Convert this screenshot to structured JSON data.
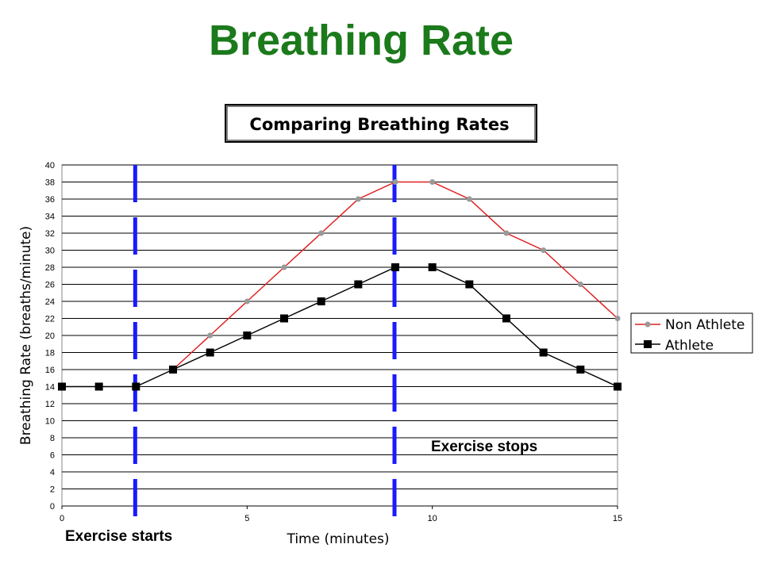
{
  "slide": {
    "title": "Breathing Rate"
  },
  "chart_data": {
    "type": "line",
    "title": "Comparing Breathing Rates",
    "xlabel": "Time (minutes)",
    "ylabel": "Breathing Rate (breaths/minute)",
    "xlim": [
      0,
      15
    ],
    "ylim": [
      0,
      40
    ],
    "xticks": [
      0,
      5,
      10,
      15
    ],
    "yticks": [
      0,
      2,
      4,
      6,
      8,
      10,
      12,
      14,
      16,
      18,
      20,
      22,
      24,
      26,
      28,
      30,
      32,
      34,
      36,
      38,
      40
    ],
    "grid": "horizontal",
    "legend_position": "right",
    "series": [
      {
        "name": "Non Athlete",
        "color": "#e02020",
        "marker_color": "#999999",
        "marker": "circle",
        "x": [
          3,
          4,
          5,
          6,
          7,
          8,
          9,
          10,
          11,
          12,
          13,
          14,
          15
        ],
        "y": [
          16,
          20,
          24,
          28,
          32,
          36,
          38,
          38,
          36,
          32,
          30,
          26,
          22
        ]
      },
      {
        "name": "Athlete",
        "color": "#000000",
        "marker_color": "#000000",
        "marker": "square",
        "x": [
          0,
          1,
          2,
          3,
          4,
          5,
          6,
          7,
          8,
          9,
          10,
          11,
          12,
          13,
          14,
          15
        ],
        "y": [
          14,
          14,
          14,
          16,
          18,
          20,
          22,
          24,
          26,
          28,
          28,
          26,
          22,
          18,
          16,
          14
        ]
      }
    ],
    "vertical_markers": [
      {
        "x": 2,
        "color": "#1a1aff",
        "style": "dashed"
      },
      {
        "x": 9,
        "color": "#1a1aff",
        "style": "dashed"
      }
    ],
    "annotations": [
      {
        "text": "Exercise starts",
        "near_x": 2
      },
      {
        "text": "Exercise stops",
        "near_x": 9
      }
    ]
  }
}
